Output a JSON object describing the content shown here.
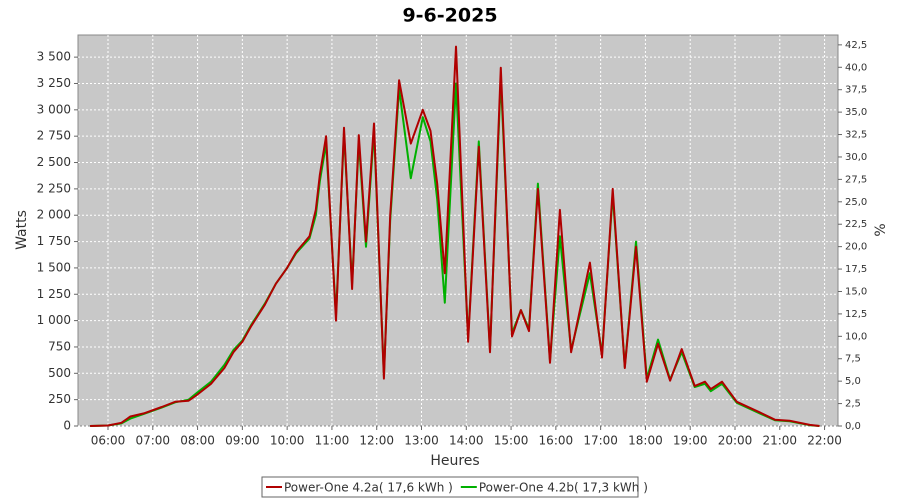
{
  "chart_data": {
    "type": "line",
    "title": "9-6-2025",
    "xlabel": "Heures",
    "ylabel": "Watts",
    "y2label": "%",
    "xlim": [
      5.33,
      22.3
    ],
    "ylim": [
      0,
      3710
    ],
    "y2lim": [
      0,
      43.6
    ],
    "grid": true,
    "legend": "bottom",
    "xticks": [
      {
        "value": 6,
        "label": "06:00"
      },
      {
        "value": 7,
        "label": "07:00"
      },
      {
        "value": 8,
        "label": "08:00"
      },
      {
        "value": 9,
        "label": "09:00"
      },
      {
        "value": 10,
        "label": "10:00"
      },
      {
        "value": 11,
        "label": "11:00"
      },
      {
        "value": 12,
        "label": "12:00"
      },
      {
        "value": 13,
        "label": "13:00"
      },
      {
        "value": 14,
        "label": "14:00"
      },
      {
        "value": 15,
        "label": "15:00"
      },
      {
        "value": 16,
        "label": "16:00"
      },
      {
        "value": 17,
        "label": "17:00"
      },
      {
        "value": 18,
        "label": "18:00"
      },
      {
        "value": 19,
        "label": "19:00"
      },
      {
        "value": 20,
        "label": "20:00"
      },
      {
        "value": 21,
        "label": "21:00"
      },
      {
        "value": 22,
        "label": "22:00"
      }
    ],
    "yticks": [
      0,
      250,
      500,
      750,
      {
        "value": 1000,
        "label": "1 000"
      },
      {
        "value": 1250,
        "label": "1 250"
      },
      {
        "value": 1500,
        "label": "1 500"
      },
      {
        "value": 1750,
        "label": "1 750"
      },
      {
        "value": 2000,
        "label": "2 000"
      },
      {
        "value": 2250,
        "label": "2 250"
      },
      {
        "value": 2500,
        "label": "2 500"
      },
      {
        "value": 2750,
        "label": "2 750"
      },
      {
        "value": 3000,
        "label": "3 000"
      },
      {
        "value": 3250,
        "label": "3 250"
      },
      {
        "value": 3500,
        "label": "3 500"
      }
    ],
    "y2ticks": [
      {
        "value": 0,
        "label": "0,0"
      },
      {
        "value": 2.5,
        "label": "2,5"
      },
      {
        "value": 5,
        "label": "5,0"
      },
      {
        "value": 7.5,
        "label": "7,5"
      },
      {
        "value": 10,
        "label": "10,0"
      },
      {
        "value": 12.5,
        "label": "12,5"
      },
      {
        "value": 15,
        "label": "15,0"
      },
      {
        "value": 17.5,
        "label": "17,5"
      },
      {
        "value": 20,
        "label": "20,0"
      },
      {
        "value": 22.5,
        "label": "22,5"
      },
      {
        "value": 25,
        "label": "25,0"
      },
      {
        "value": 27.5,
        "label": "27,5"
      },
      {
        "value": 30,
        "label": "30,0"
      },
      {
        "value": 32.5,
        "label": "32,5"
      },
      {
        "value": 35,
        "label": "35,0"
      },
      {
        "value": 37.5,
        "label": "37,5"
      },
      {
        "value": 40,
        "label": "40,0"
      },
      {
        "value": 42.5,
        "label": "42,5"
      }
    ],
    "x": [
      5.6,
      6.0,
      6.3,
      6.5,
      6.8,
      7.2,
      7.5,
      7.8,
      8.0,
      8.3,
      8.6,
      8.8,
      9.0,
      9.2,
      9.5,
      9.75,
      10.0,
      10.2,
      10.5,
      10.64,
      10.73,
      10.87,
      11.09,
      11.27,
      11.45,
      11.6,
      11.76,
      11.94,
      12.16,
      12.3,
      12.5,
      12.76,
      13.03,
      13.2,
      13.35,
      13.52,
      13.77,
      14.04,
      14.28,
      14.53,
      14.77,
      15.02,
      15.22,
      15.4,
      15.6,
      15.87,
      16.09,
      16.34,
      16.76,
      17.03,
      17.27,
      17.54,
      17.79,
      18.03,
      18.28,
      18.55,
      18.81,
      19.1,
      19.33,
      19.46,
      19.71,
      20.04,
      20.55,
      20.89,
      21.22,
      21.67,
      21.89
    ],
    "series": [
      {
        "name": "Power-One 4.2a( 17,6 kWh )",
        "color": "#b00000",
        "values": [
          0,
          5,
          30,
          90,
          120,
          180,
          230,
          240,
          300,
          400,
          550,
          700,
          800,
          950,
          1150,
          1350,
          1500,
          1650,
          1800,
          2050,
          2380,
          2750,
          1000,
          2830,
          1300,
          2760,
          1750,
          2870,
          450,
          2000,
          3280,
          2680,
          3000,
          2800,
          2300,
          1450,
          3600,
          800,
          2650,
          700,
          3400,
          850,
          1100,
          900,
          2250,
          600,
          2050,
          700,
          1550,
          650,
          2250,
          550,
          1700,
          420,
          780,
          430,
          730,
          380,
          420,
          350,
          420,
          230,
          130,
          60,
          50,
          10,
          0
        ]
      },
      {
        "name": "Power-One 4.2b( 17,3 kWh )",
        "color": "#00b000",
        "values": [
          0,
          5,
          25,
          70,
          115,
          175,
          225,
          250,
          320,
          420,
          580,
          720,
          810,
          960,
          1160,
          1350,
          1500,
          1640,
          1780,
          2000,
          2320,
          2680,
          1050,
          2780,
          1350,
          2700,
          1700,
          2800,
          480,
          1950,
          3200,
          2350,
          2930,
          2700,
          2150,
          1170,
          3250,
          830,
          2700,
          720,
          3300,
          880,
          1100,
          920,
          2300,
          620,
          1800,
          720,
          1450,
          680,
          2200,
          560,
          1750,
          450,
          820,
          440,
          700,
          370,
          400,
          330,
          400,
          220,
          120,
          55,
          45,
          8,
          0
        ]
      }
    ]
  }
}
